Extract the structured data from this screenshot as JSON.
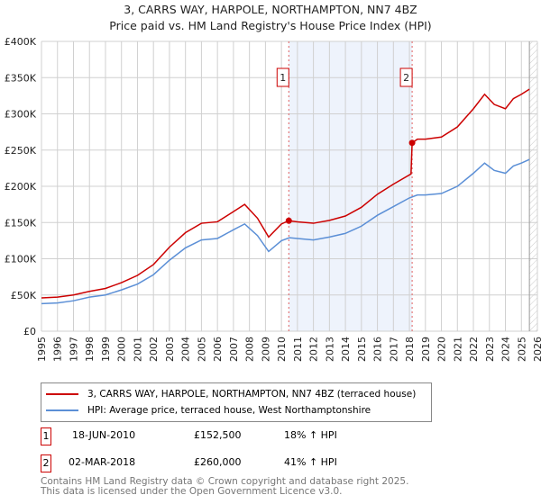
{
  "chart_data": {
    "type": "line",
    "title": "3, CARRS WAY, HARPOLE, NORTHAMPTON, NN7 4BZ",
    "subtitle": "Price paid vs. HM Land Registry's House Price Index (HPI)",
    "xlim": [
      1995,
      2026
    ],
    "ylim": [
      0,
      400000
    ],
    "x_ticks": [
      "1995",
      "1996",
      "1997",
      "1998",
      "1999",
      "2000",
      "2001",
      "2002",
      "2003",
      "2004",
      "2005",
      "2006",
      "2007",
      "2008",
      "2009",
      "2010",
      "2011",
      "2012",
      "2013",
      "2014",
      "2015",
      "2016",
      "2017",
      "2018",
      "2019",
      "2020",
      "2021",
      "2022",
      "2023",
      "2024",
      "2025",
      "2026"
    ],
    "y_ticks": [
      {
        "v": 0,
        "l": "£0"
      },
      {
        "v": 50000,
        "l": "£50K"
      },
      {
        "v": 100000,
        "l": "£100K"
      },
      {
        "v": 150000,
        "l": "£150K"
      },
      {
        "v": 200000,
        "l": "£200K"
      },
      {
        "v": 250000,
        "l": "£250K"
      },
      {
        "v": 300000,
        "l": "£300K"
      },
      {
        "v": 350000,
        "l": "£350K"
      },
      {
        "v": 400000,
        "l": "£400K"
      }
    ],
    "grid": true,
    "shaded_range": [
      2010.46,
      2018.17
    ],
    "hatched_from": 2025.5,
    "series": [
      {
        "name": "3, CARRS WAY, HARPOLE, NORTHAMPTON, NN7 4BZ (terraced house)",
        "color": "#cc0000",
        "x": [
          1995,
          1996,
          1997,
          1998,
          1999,
          2000,
          2001,
          2002,
          2003,
          2004,
          2005,
          2006,
          2007,
          2007.7,
          2008.5,
          2009.2,
          2010,
          2010.46,
          2011,
          2012,
          2013,
          2014,
          2015,
          2016,
          2017,
          2018.1,
          2018.17,
          2018.5,
          2019,
          2020,
          2021,
          2022,
          2022.7,
          2023.3,
          2024,
          2024.5,
          2025,
          2025.5
        ],
        "y": [
          46000,
          47000,
          50000,
          55000,
          59000,
          67000,
          77000,
          92000,
          116000,
          136000,
          149000,
          151000,
          165000,
          175000,
          156000,
          130000,
          148000,
          152500,
          151000,
          149000,
          153000,
          159000,
          171000,
          189000,
          203000,
          217000,
          260000,
          265000,
          265000,
          268000,
          282000,
          307000,
          327000,
          313000,
          307000,
          321000,
          327000,
          334000
        ]
      },
      {
        "name": "HPI: Average price, terraced house, West Northamptonshire",
        "color": "#5b8fd6",
        "x": [
          1995,
          1996,
          1997,
          1998,
          1999,
          2000,
          2001,
          2002,
          2003,
          2004,
          2005,
          2006,
          2007,
          2007.7,
          2008.5,
          2009.2,
          2010,
          2010.5,
          2011,
          2012,
          2013,
          2014,
          2015,
          2016,
          2017,
          2018,
          2018.5,
          2019,
          2020,
          2021,
          2022,
          2022.7,
          2023.3,
          2024,
          2024.5,
          2025,
          2025.5
        ],
        "y": [
          38000,
          39000,
          42000,
          47000,
          50000,
          57000,
          65000,
          78000,
          98000,
          115000,
          126000,
          128000,
          140000,
          148000,
          132000,
          110000,
          125000,
          129000,
          128000,
          126000,
          130000,
          135000,
          145000,
          160000,
          172000,
          184000,
          188000,
          188000,
          190000,
          200000,
          218000,
          232000,
          222000,
          218000,
          228000,
          232000,
          237000
        ]
      }
    ],
    "sales": [
      {
        "label": "1",
        "x": 2010.46,
        "y": 152500
      },
      {
        "label": "2",
        "x": 2018.17,
        "y": 260000
      }
    ]
  },
  "table": [
    {
      "num": "1",
      "date": "18-JUN-2010",
      "price": "£152,500",
      "hpi": "18% ↑ HPI"
    },
    {
      "num": "2",
      "date": "02-MAR-2018",
      "price": "£260,000",
      "hpi": "41% ↑ HPI"
    }
  ],
  "footer": [
    "Contains HM Land Registry data © Crown copyright and database right 2025.",
    "This data is licensed under the Open Government Licence v3.0."
  ]
}
